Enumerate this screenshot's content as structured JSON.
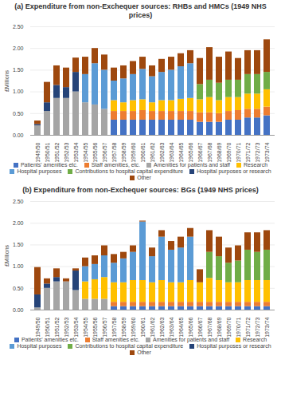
{
  "chart_data": [
    {
      "type": "bar",
      "stacked": true,
      "grid": true,
      "legend": "bottom",
      "title": "(a)  Expenditure from non-Exchequer sources: RHBs and HMCs (1949 NHS prices)",
      "y_label": "£Millions",
      "categories": [
        "1949/50",
        "1950/51",
        "1951/52",
        "1952/53",
        "1953/54",
        "1954/55",
        "1955/56",
        "1956/57",
        "1957/58",
        "1958/59",
        "1959/60",
        "1960/61",
        "1961/62",
        "1962/63",
        "1963/64",
        "1964/65",
        "1965/66",
        "1966/67",
        "1967/68",
        "1968/69",
        "1969/70",
        "1970/71",
        "1971/72",
        "1972/73",
        "1973/74"
      ],
      "ylim": [
        0,
        2.5
      ],
      "yticks": [
        {
          "value": 0,
          "label": "0.00"
        },
        {
          "value": 0.5,
          "label": "0.50"
        },
        {
          "value": 1,
          "label": "1.00"
        },
        {
          "value": 1.5,
          "label": "1.50"
        },
        {
          "value": 2,
          "label": "2.00"
        },
        {
          "value": 2.5,
          "label": "2.50"
        }
      ],
      "series": [
        {
          "name": "Patients' amenities etc.",
          "color": "#4472c4",
          "values": [
            null,
            null,
            null,
            null,
            null,
            null,
            null,
            null,
            0.35,
            0.35,
            0.35,
            0.35,
            0.35,
            0.35,
            0.35,
            0.35,
            0.35,
            0.3,
            0.3,
            0.3,
            0.35,
            0.35,
            0.4,
            0.4,
            0.45
          ]
        },
        {
          "name": "Staff amenities, etc.",
          "color": "#ed7d31",
          "values": [
            null,
            null,
            null,
            null,
            null,
            null,
            null,
            null,
            0.2,
            0.2,
            0.2,
            0.22,
            0.2,
            0.2,
            0.2,
            0.2,
            0.2,
            0.22,
            0.22,
            0.2,
            0.2,
            0.22,
            0.2,
            0.2,
            0.2
          ]
        },
        {
          "name": "Amenities for patients and staff",
          "color": "#a5a5a5",
          "values": [
            0.22,
            0.55,
            0.85,
            0.85,
            1.0,
            0.75,
            0.7,
            0.6,
            null,
            null,
            null,
            null,
            null,
            null,
            null,
            null,
            null,
            null,
            null,
            null,
            null,
            null,
            null,
            null,
            null
          ]
        },
        {
          "name": "Research",
          "color": "#ffc000",
          "values": [
            null,
            null,
            null,
            null,
            null,
            null,
            null,
            null,
            0.25,
            0.2,
            0.25,
            0.25,
            0.2,
            0.25,
            0.25,
            0.28,
            0.3,
            0.3,
            0.35,
            0.3,
            0.32,
            0.3,
            0.35,
            0.35,
            0.4
          ]
        },
        {
          "name": "Hospital purposes",
          "color": "#5b9bd5",
          "values": [
            null,
            null,
            null,
            null,
            null,
            0.65,
            0.95,
            0.9,
            0.45,
            0.55,
            0.6,
            0.7,
            0.6,
            0.65,
            0.7,
            0.75,
            0.8,
            null,
            null,
            null,
            null,
            null,
            null,
            null,
            null
          ]
        },
        {
          "name": "Contributions to hospital capital expenditure",
          "color": "#70ad47",
          "values": [
            null,
            null,
            null,
            null,
            null,
            null,
            null,
            null,
            null,
            null,
            null,
            null,
            null,
            null,
            null,
            null,
            null,
            0.35,
            0.4,
            0.4,
            0.4,
            0.4,
            0.45,
            0.45,
            0.4
          ]
        },
        {
          "name": "Hospital purposes or research",
          "color": "#264478",
          "values": [
            0.03,
            0.2,
            0.3,
            0.25,
            0.45,
            null,
            null,
            null,
            null,
            null,
            null,
            null,
            null,
            null,
            null,
            null,
            null,
            null,
            null,
            null,
            null,
            null,
            null,
            null,
            null
          ]
        },
        {
          "name": "Other",
          "color": "#9e480e",
          "values": [
            0.08,
            0.47,
            0.45,
            0.45,
            0.33,
            0.4,
            0.35,
            0.35,
            0.3,
            0.3,
            0.3,
            0.28,
            0.25,
            0.3,
            0.3,
            0.3,
            0.3,
            0.6,
            0.75,
            0.6,
            0.65,
            0.5,
            0.55,
            0.55,
            0.75
          ]
        }
      ]
    },
    {
      "type": "bar",
      "stacked": true,
      "grid": true,
      "legend": "bottom",
      "title": "(b)  Expenditure from non-Exchequer sources: BGs (1949 NHS prices)",
      "y_label": "£Millions",
      "categories": [
        "1949/50",
        "1950/51",
        "1951/52",
        "1952/53",
        "1953/54",
        "1954/55",
        "1955/56",
        "1956/57",
        "1957/58",
        "1958/59",
        "1959/60",
        "1960/61",
        "1961/62",
        "1962/63",
        "1963/64",
        "1964/65",
        "1965/66",
        "1966/67",
        "1967/68",
        "1968/69",
        "1969/70",
        "1970/71",
        "1971/72",
        "1972/73",
        "1973/74"
      ],
      "ylim": [
        0,
        2.5
      ],
      "yticks": [
        {
          "value": 0,
          "label": "0.00"
        },
        {
          "value": 0.5,
          "label": "0.50"
        },
        {
          "value": 1,
          "label": "1.00"
        },
        {
          "value": 1.5,
          "label": "1.50"
        },
        {
          "value": 2,
          "label": "2.00"
        },
        {
          "value": 2.5,
          "label": "2.50"
        }
      ],
      "series": [
        {
          "name": "Patients' amenities etc.",
          "color": "#4472c4",
          "values": [
            null,
            null,
            null,
            null,
            null,
            null,
            null,
            null,
            0.08,
            0.08,
            0.08,
            0.08,
            0.08,
            0.08,
            0.08,
            0.08,
            0.08,
            0.08,
            0.08,
            0.08,
            0.08,
            0.08,
            0.08,
            0.08,
            0.08
          ]
        },
        {
          "name": "Staff amenities etc.",
          "color": "#ed7d31",
          "values": [
            null,
            null,
            null,
            null,
            null,
            null,
            null,
            null,
            0.1,
            0.1,
            0.1,
            0.1,
            0.1,
            0.1,
            0.1,
            0.1,
            0.1,
            0.1,
            0.1,
            0.1,
            0.1,
            0.1,
            0.1,
            0.1,
            0.1
          ]
        },
        {
          "name": "Amenities for patients and staff",
          "color": "#a5a5a5",
          "values": [
            0.05,
            0.5,
            0.65,
            0.65,
            0.45,
            0.25,
            0.25,
            0.25,
            null,
            null,
            null,
            null,
            null,
            null,
            null,
            null,
            null,
            null,
            null,
            null,
            null,
            null,
            null,
            null,
            null
          ]
        },
        {
          "name": "Research",
          "color": "#ffc000",
          "values": [
            null,
            null,
            null,
            null,
            null,
            0.4,
            0.45,
            0.5,
            0.45,
            0.45,
            0.5,
            0.5,
            0.45,
            0.5,
            0.45,
            0.45,
            0.5,
            0.45,
            0.55,
            0.5,
            0.45,
            0.45,
            0.5,
            0.5,
            0.5
          ]
        },
        {
          "name": "Hospital purposes",
          "color": "#5b9bd5",
          "values": [
            null,
            null,
            null,
            null,
            null,
            0.35,
            0.35,
            0.5,
            0.45,
            0.55,
            0.65,
            1.35,
            0.6,
            1.0,
            0.75,
            0.8,
            1.0,
            null,
            null,
            null,
            null,
            null,
            null,
            null,
            null
          ]
        },
        {
          "name": "Contributions to hospital capital expenditure",
          "color": "#70ad47",
          "values": [
            null,
            null,
            null,
            null,
            null,
            null,
            null,
            null,
            null,
            null,
            null,
            null,
            null,
            null,
            null,
            null,
            null,
            null,
            0.6,
            0.55,
            0.45,
            0.5,
            0.7,
            0.65,
            0.7
          ]
        },
        {
          "name": "Hospital purposes or research",
          "color": "#264478",
          "values": [
            0.3,
            0.1,
            0.1,
            null,
            0.45,
            null,
            null,
            null,
            null,
            null,
            null,
            null,
            null,
            null,
            null,
            null,
            null,
            null,
            null,
            null,
            null,
            null,
            null,
            null,
            null
          ]
        },
        {
          "name": "Other",
          "color": "#9e480e",
          "values": [
            0.63,
            0.12,
            0.2,
            0.07,
            0.05,
            0.2,
            0.2,
            0.23,
            0.2,
            0.15,
            0.15,
            0.02,
            0.2,
            0.15,
            0.2,
            0.25,
            0.2,
            0.3,
            0.5,
            0.45,
            0.35,
            0.35,
            0.4,
            0.45,
            0.45
          ]
        }
      ]
    }
  ]
}
